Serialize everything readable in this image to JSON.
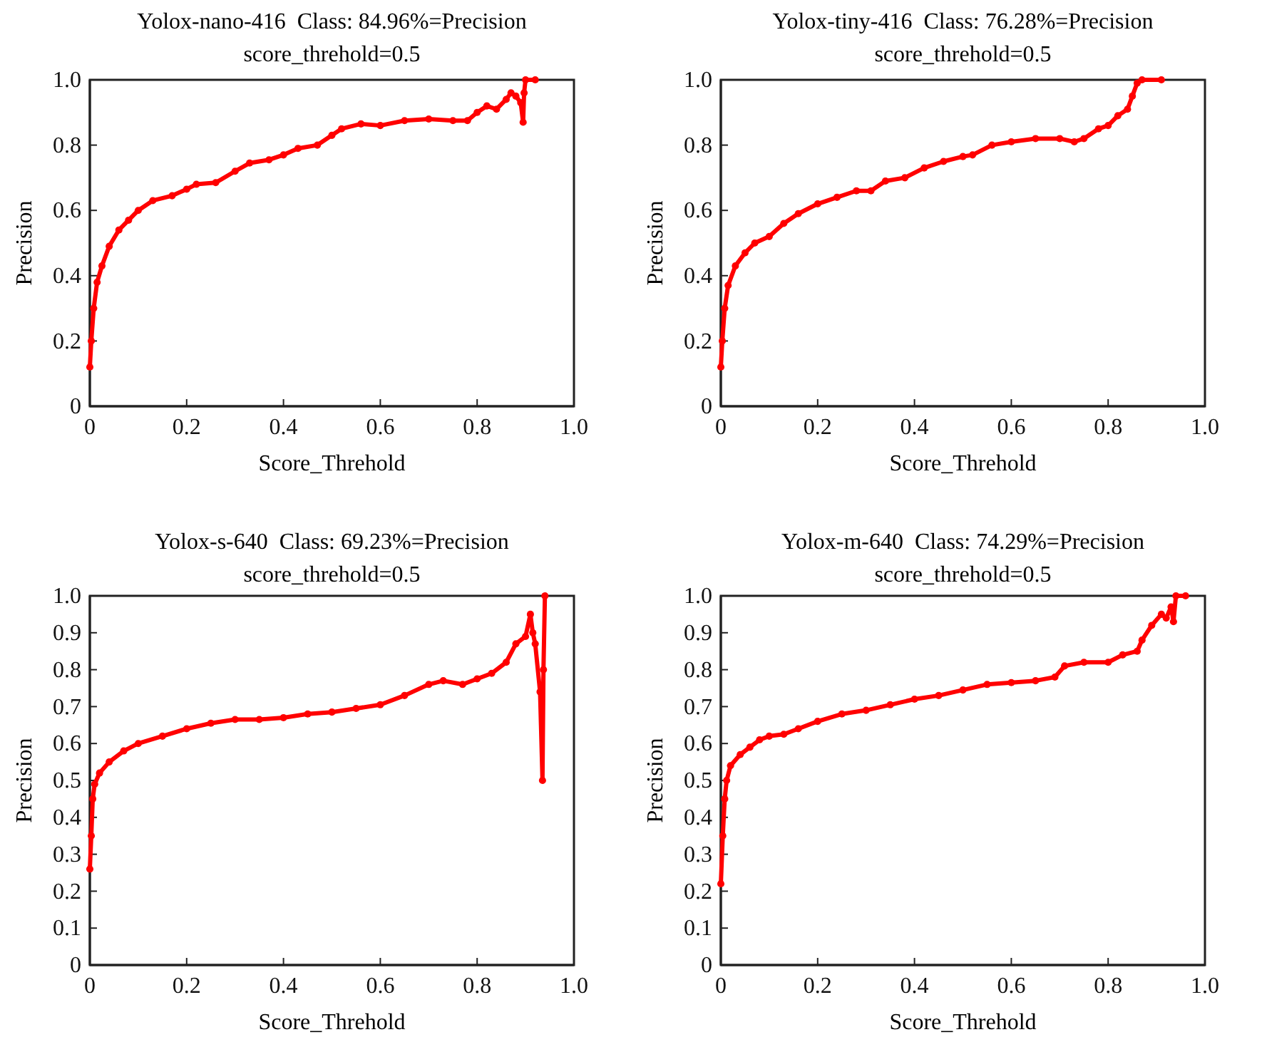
{
  "chart_data": [
    {
      "type": "line",
      "title": "Yolox-nano-416  Class: 84.96%=Precision",
      "subtitle": "score_threhold=0.5",
      "xlabel": "Score_Threhold",
      "ylabel": "Precision",
      "xlim": [
        0,
        1
      ],
      "ylim": [
        0,
        1
      ],
      "xticks": [
        {
          "value": 0,
          "label": "0"
        },
        {
          "value": 0.2,
          "label": "0.2"
        },
        {
          "value": 0.4,
          "label": "0.4"
        },
        {
          "value": 0.6,
          "label": "0.6"
        },
        {
          "value": 0.8,
          "label": "0.8"
        },
        {
          "value": 1,
          "label": "1.0"
        }
      ],
      "yticks": [
        {
          "value": 0,
          "label": "0"
        },
        {
          "value": 0.2,
          "label": "0.2"
        },
        {
          "value": 0.4,
          "label": "0.4"
        },
        {
          "value": 0.6,
          "label": "0.6"
        },
        {
          "value": 0.8,
          "label": "0.8"
        },
        {
          "value": 1,
          "label": "1.0"
        }
      ],
      "grid": false,
      "marker": "circle",
      "line_style": "solid",
      "series": [
        {
          "color": "#ff0000",
          "x": [
            0,
            0.003,
            0.008,
            0.015,
            0.025,
            0.04,
            0.06,
            0.08,
            0.1,
            0.13,
            0.17,
            0.2,
            0.22,
            0.26,
            0.3,
            0.33,
            0.37,
            0.4,
            0.43,
            0.47,
            0.5,
            0.52,
            0.56,
            0.6,
            0.65,
            0.7,
            0.75,
            0.78,
            0.8,
            0.82,
            0.84,
            0.86,
            0.87,
            0.88,
            0.89,
            0.895,
            0.897,
            0.9,
            0.92
          ],
          "values": [
            0.12,
            0.2,
            0.3,
            0.38,
            0.43,
            0.49,
            0.54,
            0.57,
            0.6,
            0.63,
            0.645,
            0.665,
            0.68,
            0.685,
            0.72,
            0.745,
            0.755,
            0.77,
            0.79,
            0.8,
            0.83,
            0.85,
            0.865,
            0.86,
            0.875,
            0.88,
            0.875,
            0.875,
            0.9,
            0.92,
            0.91,
            0.94,
            0.96,
            0.95,
            0.93,
            0.87,
            0.96,
            1,
            1
          ]
        }
      ]
    },
    {
      "type": "line",
      "title": "Yolox-tiny-416  Class: 76.28%=Precision",
      "subtitle": "score_threhold=0.5",
      "xlabel": "Score_Threhold",
      "ylabel": "Precision",
      "xlim": [
        0,
        1
      ],
      "ylim": [
        0,
        1
      ],
      "xticks": [
        {
          "value": 0,
          "label": "0"
        },
        {
          "value": 0.2,
          "label": "0.2"
        },
        {
          "value": 0.4,
          "label": "0.4"
        },
        {
          "value": 0.6,
          "label": "0.6"
        },
        {
          "value": 0.8,
          "label": "0.8"
        },
        {
          "value": 1,
          "label": "1.0"
        }
      ],
      "yticks": [
        {
          "value": 0,
          "label": "0"
        },
        {
          "value": 0.2,
          "label": "0.2"
        },
        {
          "value": 0.4,
          "label": "0.4"
        },
        {
          "value": 0.6,
          "label": "0.6"
        },
        {
          "value": 0.8,
          "label": "0.8"
        },
        {
          "value": 1,
          "label": "1.0"
        }
      ],
      "grid": false,
      "marker": "circle",
      "line_style": "solid",
      "series": [
        {
          "color": "#ff0000",
          "x": [
            0,
            0.003,
            0.008,
            0.015,
            0.03,
            0.05,
            0.07,
            0.1,
            0.13,
            0.16,
            0.2,
            0.24,
            0.28,
            0.31,
            0.34,
            0.38,
            0.42,
            0.46,
            0.5,
            0.52,
            0.56,
            0.6,
            0.65,
            0.7,
            0.73,
            0.75,
            0.78,
            0.8,
            0.82,
            0.84,
            0.85,
            0.86,
            0.87,
            0.91
          ],
          "values": [
            0.12,
            0.2,
            0.3,
            0.37,
            0.43,
            0.47,
            0.5,
            0.52,
            0.56,
            0.59,
            0.62,
            0.64,
            0.66,
            0.66,
            0.69,
            0.7,
            0.73,
            0.75,
            0.765,
            0.77,
            0.8,
            0.81,
            0.82,
            0.82,
            0.81,
            0.82,
            0.85,
            0.86,
            0.89,
            0.91,
            0.95,
            0.99,
            1,
            1
          ]
        }
      ]
    },
    {
      "type": "line",
      "title": "Yolox-s-640  Class: 69.23%=Precision",
      "subtitle": "score_threhold=0.5",
      "xlabel": "Score_Threhold",
      "ylabel": "Precision",
      "xlim": [
        0,
        1
      ],
      "ylim": [
        0,
        1
      ],
      "xticks": [
        {
          "value": 0,
          "label": "0"
        },
        {
          "value": 0.2,
          "label": "0.2"
        },
        {
          "value": 0.4,
          "label": "0.4"
        },
        {
          "value": 0.6,
          "label": "0.6"
        },
        {
          "value": 0.8,
          "label": "0.8"
        },
        {
          "value": 1,
          "label": "1.0"
        }
      ],
      "yticks": [
        {
          "value": 0,
          "label": "0"
        },
        {
          "value": 0.1,
          "label": "0.1"
        },
        {
          "value": 0.2,
          "label": "0.2"
        },
        {
          "value": 0.3,
          "label": "0.3"
        },
        {
          "value": 0.4,
          "label": "0.4"
        },
        {
          "value": 0.5,
          "label": "0.5"
        },
        {
          "value": 0.6,
          "label": "0.6"
        },
        {
          "value": 0.7,
          "label": "0.7"
        },
        {
          "value": 0.8,
          "label": "0.8"
        },
        {
          "value": 0.9,
          "label": "0.9"
        },
        {
          "value": 1,
          "label": "1.0"
        }
      ],
      "grid": false,
      "marker": "circle",
      "line_style": "solid",
      "series": [
        {
          "color": "#ff0000",
          "x": [
            0,
            0.003,
            0.006,
            0.01,
            0.02,
            0.04,
            0.07,
            0.1,
            0.15,
            0.2,
            0.25,
            0.3,
            0.35,
            0.4,
            0.45,
            0.5,
            0.55,
            0.6,
            0.65,
            0.7,
            0.73,
            0.77,
            0.8,
            0.83,
            0.86,
            0.88,
            0.9,
            0.91,
            0.915,
            0.92,
            0.93,
            0.935,
            0.937,
            0.94
          ],
          "values": [
            0.26,
            0.35,
            0.45,
            0.49,
            0.52,
            0.55,
            0.58,
            0.6,
            0.62,
            0.64,
            0.655,
            0.665,
            0.665,
            0.67,
            0.68,
            0.685,
            0.695,
            0.705,
            0.73,
            0.76,
            0.77,
            0.76,
            0.775,
            0.79,
            0.82,
            0.87,
            0.89,
            0.95,
            0.9,
            0.87,
            0.74,
            0.5,
            0.8,
            1
          ]
        }
      ]
    },
    {
      "type": "line",
      "title": "Yolox-m-640  Class: 74.29%=Precision",
      "subtitle": "score_threhold=0.5",
      "xlabel": "Score_Threhold",
      "ylabel": "Precision",
      "xlim": [
        0,
        1
      ],
      "ylim": [
        0,
        1
      ],
      "xticks": [
        {
          "value": 0,
          "label": "0"
        },
        {
          "value": 0.2,
          "label": "0.2"
        },
        {
          "value": 0.4,
          "label": "0.4"
        },
        {
          "value": 0.6,
          "label": "0.6"
        },
        {
          "value": 0.8,
          "label": "0.8"
        },
        {
          "value": 1,
          "label": "1.0"
        }
      ],
      "yticks": [
        {
          "value": 0,
          "label": "0"
        },
        {
          "value": 0.1,
          "label": "0.1"
        },
        {
          "value": 0.2,
          "label": "0.2"
        },
        {
          "value": 0.3,
          "label": "0.3"
        },
        {
          "value": 0.4,
          "label": "0.4"
        },
        {
          "value": 0.5,
          "label": "0.5"
        },
        {
          "value": 0.6,
          "label": "0.6"
        },
        {
          "value": 0.7,
          "label": "0.7"
        },
        {
          "value": 0.8,
          "label": "0.8"
        },
        {
          "value": 0.9,
          "label": "0.9"
        },
        {
          "value": 1,
          "label": "1.0"
        }
      ],
      "grid": false,
      "marker": "circle",
      "line_style": "solid",
      "series": [
        {
          "color": "#ff0000",
          "x": [
            0,
            0.004,
            0.008,
            0.012,
            0.02,
            0.04,
            0.06,
            0.08,
            0.1,
            0.13,
            0.16,
            0.2,
            0.25,
            0.3,
            0.35,
            0.4,
            0.45,
            0.5,
            0.55,
            0.6,
            0.65,
            0.69,
            0.71,
            0.75,
            0.8,
            0.83,
            0.86,
            0.87,
            0.89,
            0.91,
            0.92,
            0.93,
            0.935,
            0.94,
            0.96
          ],
          "values": [
            0.22,
            0.35,
            0.45,
            0.5,
            0.54,
            0.57,
            0.59,
            0.61,
            0.62,
            0.625,
            0.64,
            0.66,
            0.68,
            0.69,
            0.705,
            0.72,
            0.73,
            0.745,
            0.76,
            0.765,
            0.77,
            0.78,
            0.81,
            0.82,
            0.82,
            0.84,
            0.85,
            0.88,
            0.92,
            0.95,
            0.94,
            0.97,
            0.93,
            1,
            1
          ]
        }
      ]
    }
  ]
}
